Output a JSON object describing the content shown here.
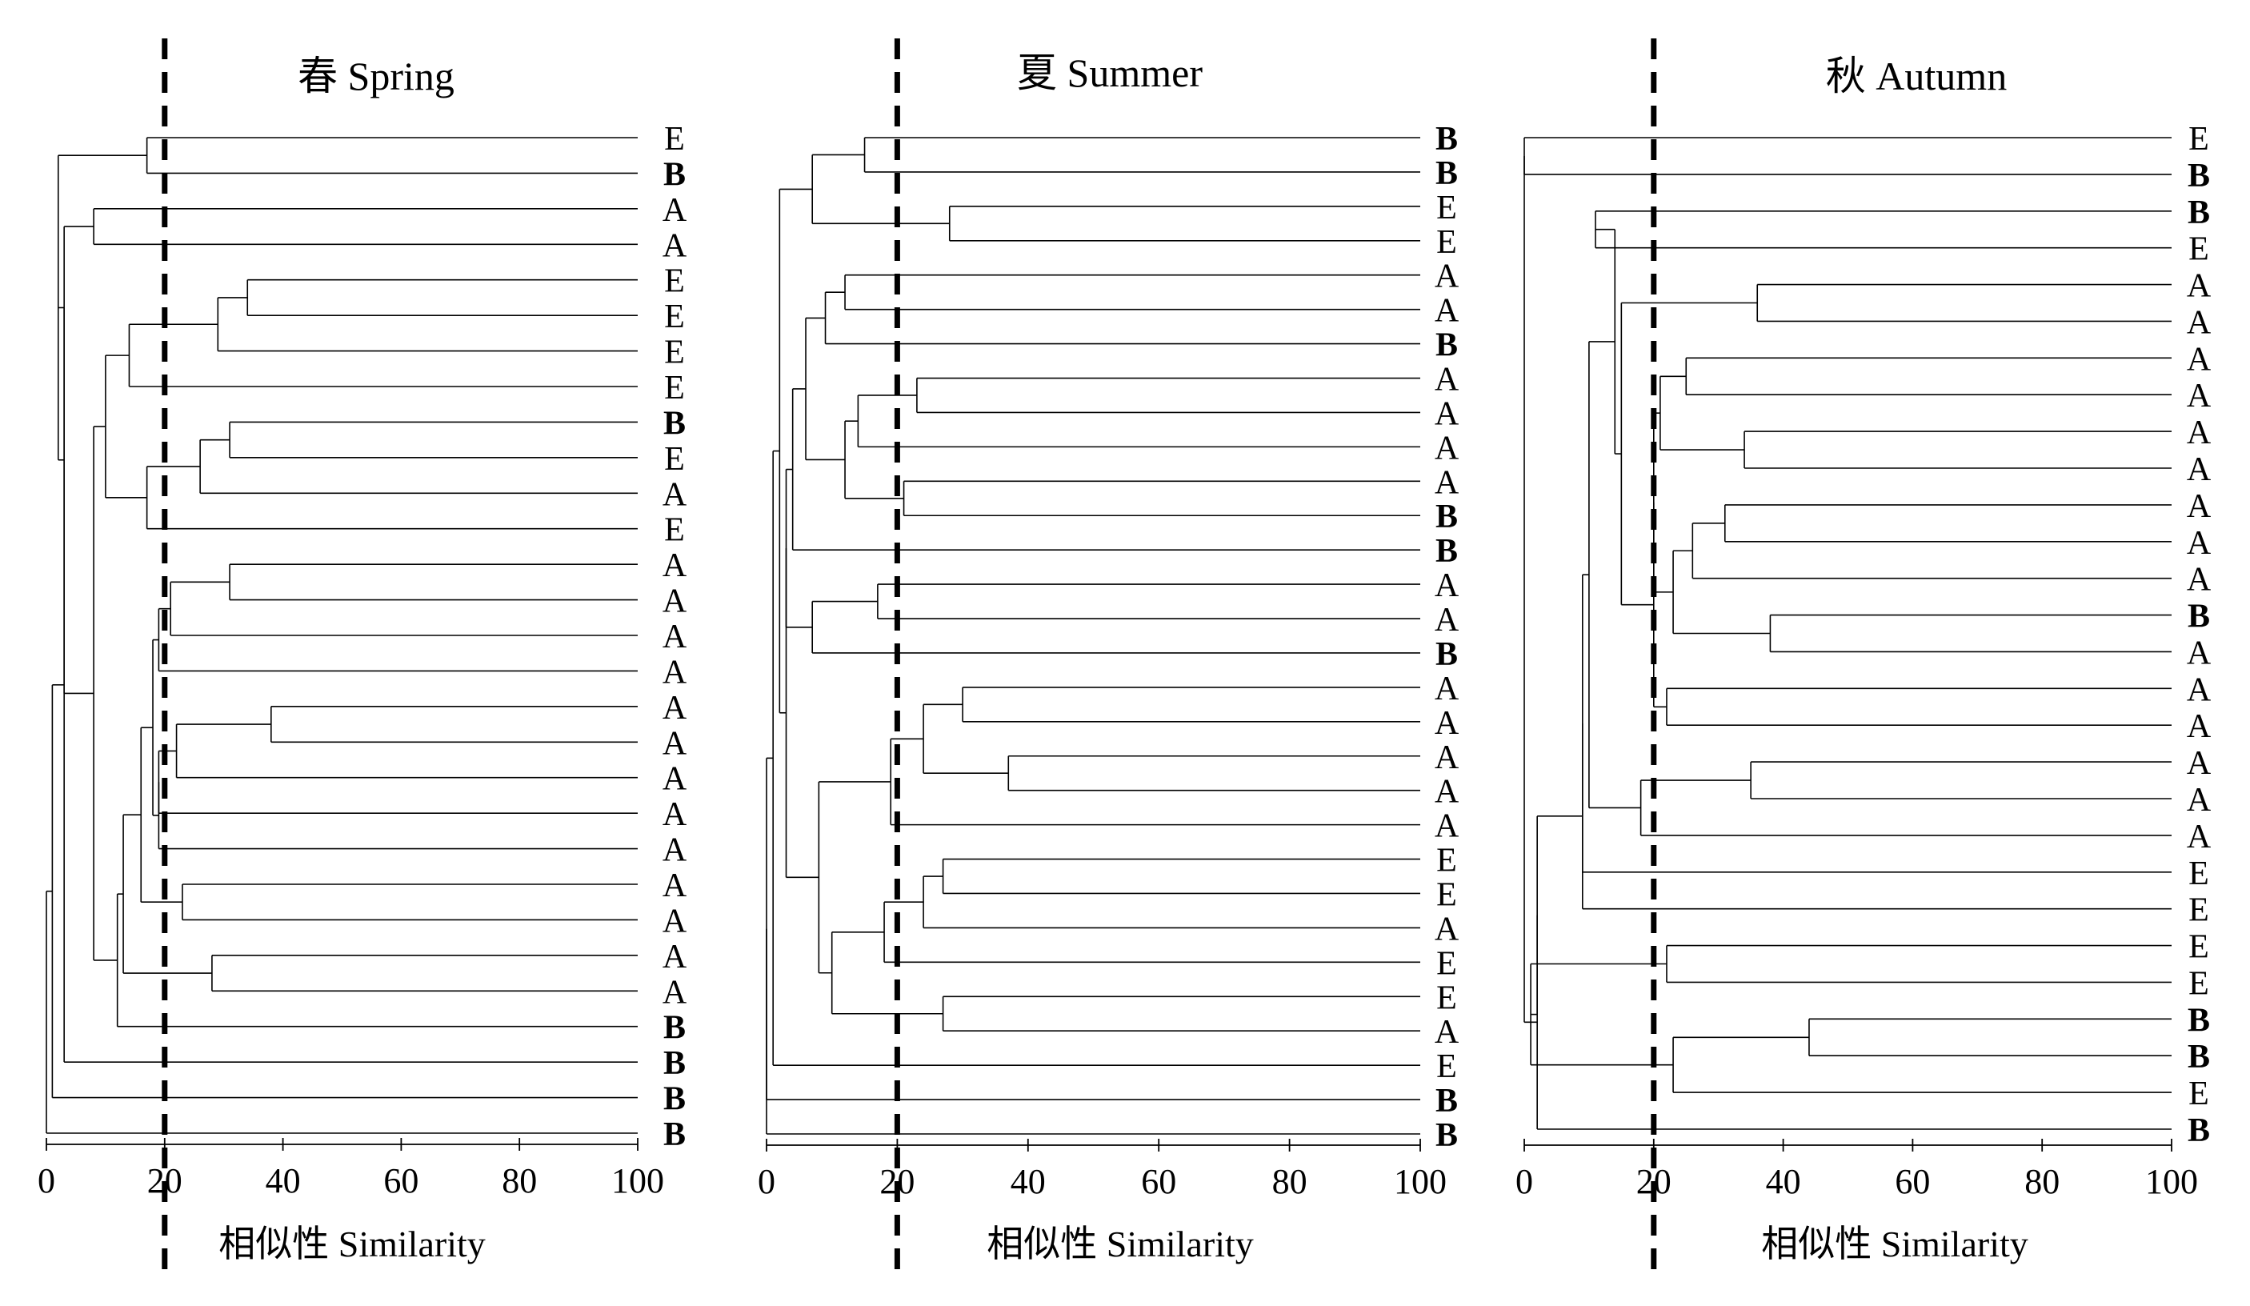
{
  "chart_data": [
    {
      "type": "dendrogram",
      "title": "春 Spring",
      "xlabel": "相似性 Similarity",
      "xlim": [
        0,
        100
      ],
      "xticks": [
        0,
        20,
        40,
        60,
        80,
        100
      ],
      "threshold": 20,
      "leaves": [
        {
          "label": "E",
          "bold": false
        },
        {
          "label": "B",
          "bold": true
        },
        {
          "label": "A",
          "bold": false
        },
        {
          "label": "A",
          "bold": false
        },
        {
          "label": "E",
          "bold": false
        },
        {
          "label": "E",
          "bold": false
        },
        {
          "label": "E",
          "bold": false
        },
        {
          "label": "E",
          "bold": false
        },
        {
          "label": "B",
          "bold": true
        },
        {
          "label": "E",
          "bold": false
        },
        {
          "label": "A",
          "bold": false
        },
        {
          "label": "E",
          "bold": false
        },
        {
          "label": "A",
          "bold": false
        },
        {
          "label": "A",
          "bold": false
        },
        {
          "label": "A",
          "bold": false
        },
        {
          "label": "A",
          "bold": false
        },
        {
          "label": "A",
          "bold": false
        },
        {
          "label": "A",
          "bold": false
        },
        {
          "label": "A",
          "bold": false
        },
        {
          "label": "A",
          "bold": false
        },
        {
          "label": "A",
          "bold": false
        },
        {
          "label": "A",
          "bold": false
        },
        {
          "label": "A",
          "bold": false
        },
        {
          "label": "A",
          "bold": false
        },
        {
          "label": "A",
          "bold": false
        },
        {
          "label": "B",
          "bold": true
        },
        {
          "label": "B",
          "bold": true
        },
        {
          "label": "B",
          "bold": true
        },
        {
          "label": "B",
          "bold": true
        }
      ],
      "merges": [
        {
          "a": "L0",
          "b": "L1",
          "s": 17
        },
        {
          "a": "L2",
          "b": "L3",
          "s": 8
        },
        {
          "a": "L4",
          "b": "L5",
          "s": 34
        },
        {
          "a": "L8",
          "b": "L9",
          "s": 31
        },
        {
          "a": "L12",
          "b": "L13",
          "s": 31
        },
        {
          "a": "L16",
          "b": "L17",
          "s": 38
        },
        {
          "a": "L21",
          "b": "L22",
          "s": 23
        },
        {
          "a": "L23",
          "b": "L24",
          "s": 28
        },
        {
          "a": "M2",
          "b": "L6",
          "s": 29
        },
        {
          "a": "M8",
          "b": "L7",
          "s": 14
        },
        {
          "a": "M3",
          "b": "L10",
          "s": 26
        },
        {
          "a": "M10",
          "b": "L11",
          "s": 17
        },
        {
          "a": "M9",
          "b": "M11",
          "s": 10
        },
        {
          "a": "M4",
          "b": "L14",
          "s": 21
        },
        {
          "a": "M13",
          "b": "L15",
          "s": 19
        },
        {
          "a": "M5",
          "b": "L18",
          "s": 22
        },
        {
          "a": "M15",
          "b": "L19",
          "s": 19
        },
        {
          "a": "M16",
          "b": "L20",
          "s": 19
        },
        {
          "a": "M14",
          "b": "M17",
          "s": 18
        },
        {
          "a": "M18",
          "b": "M6",
          "s": 16
        },
        {
          "a": "M19",
          "b": "M7",
          "s": 13
        },
        {
          "a": "M20",
          "b": "L25",
          "s": 12
        },
        {
          "a": "M12",
          "b": "M21",
          "s": 8
        },
        {
          "a": "M1",
          "b": "M22",
          "s": 3
        },
        {
          "a": "M0",
          "b": "M23",
          "s": 2
        },
        {
          "a": "M24",
          "b": "L26",
          "s": 3
        },
        {
          "a": "M25",
          "b": "L27",
          "s": 1
        },
        {
          "a": "M26",
          "b": "L28",
          "s": 0
        }
      ]
    },
    {
      "type": "dendrogram",
      "title": "夏 Summer",
      "xlabel": "相似性 Similarity",
      "xlim": [
        0,
        100
      ],
      "xticks": [
        0,
        20,
        40,
        60,
        80,
        100
      ],
      "threshold": 20,
      "leaves": [
        {
          "label": "B",
          "bold": true
        },
        {
          "label": "B",
          "bold": true
        },
        {
          "label": "E",
          "bold": false
        },
        {
          "label": "E",
          "bold": false
        },
        {
          "label": "A",
          "bold": false
        },
        {
          "label": "A",
          "bold": false
        },
        {
          "label": "B",
          "bold": true
        },
        {
          "label": "A",
          "bold": false
        },
        {
          "label": "A",
          "bold": false
        },
        {
          "label": "A",
          "bold": false
        },
        {
          "label": "A",
          "bold": false
        },
        {
          "label": "B",
          "bold": true
        },
        {
          "label": "B",
          "bold": true
        },
        {
          "label": "A",
          "bold": false
        },
        {
          "label": "A",
          "bold": false
        },
        {
          "label": "B",
          "bold": true
        },
        {
          "label": "A",
          "bold": false
        },
        {
          "label": "A",
          "bold": false
        },
        {
          "label": "A",
          "bold": false
        },
        {
          "label": "A",
          "bold": false
        },
        {
          "label": "A",
          "bold": false
        },
        {
          "label": "E",
          "bold": false
        },
        {
          "label": "E",
          "bold": false
        },
        {
          "label": "A",
          "bold": false
        },
        {
          "label": "E",
          "bold": false
        },
        {
          "label": "E",
          "bold": false
        },
        {
          "label": "A",
          "bold": false
        },
        {
          "label": "E",
          "bold": false
        },
        {
          "label": "B",
          "bold": true
        },
        {
          "label": "B",
          "bold": true
        }
      ],
      "merges": [
        {
          "a": "L0",
          "b": "L1",
          "s": 15
        },
        {
          "a": "L2",
          "b": "L3",
          "s": 28
        },
        {
          "a": "L4",
          "b": "L5",
          "s": 12
        },
        {
          "a": "L7",
          "b": "L8",
          "s": 23
        },
        {
          "a": "L10",
          "b": "L11",
          "s": 21
        },
        {
          "a": "L13",
          "b": "L14",
          "s": 17
        },
        {
          "a": "L16",
          "b": "L17",
          "s": 30
        },
        {
          "a": "L18",
          "b": "L19",
          "s": 37
        },
        {
          "a": "L21",
          "b": "L22",
          "s": 27
        },
        {
          "a": "L25",
          "b": "L26",
          "s": 27
        },
        {
          "a": "M0",
          "b": "M1",
          "s": 7
        },
        {
          "a": "M2",
          "b": "L6",
          "s": 9
        },
        {
          "a": "M3",
          "b": "L9",
          "s": 14
        },
        {
          "a": "M12",
          "b": "M4",
          "s": 12
        },
        {
          "a": "M11",
          "b": "M13",
          "s": 6
        },
        {
          "a": "M14",
          "b": "L12",
          "s": 4
        },
        {
          "a": "M5",
          "b": "L15",
          "s": 7
        },
        {
          "a": "M15",
          "b": "M16",
          "s": 3
        },
        {
          "a": "M6",
          "b": "M7",
          "s": 24
        },
        {
          "a": "M18",
          "b": "L20",
          "s": 19
        },
        {
          "a": "M8",
          "b": "L23",
          "s": 24
        },
        {
          "a": "M20",
          "b": "L24",
          "s": 18
        },
        {
          "a": "M21",
          "b": "M9",
          "s": 10
        },
        {
          "a": "M19",
          "b": "M22",
          "s": 8
        },
        {
          "a": "M17",
          "b": "M23",
          "s": 3
        },
        {
          "a": "M10",
          "b": "M24",
          "s": 2
        },
        {
          "a": "M25",
          "b": "L27",
          "s": 1
        },
        {
          "a": "M26",
          "b": "L28",
          "s": 0
        },
        {
          "a": "M27",
          "b": "L29",
          "s": 0
        }
      ]
    },
    {
      "type": "dendrogram",
      "title": "秋 Autumn",
      "xlabel": "相似性 Similarity",
      "xlim": [
        0,
        100
      ],
      "xticks": [
        0,
        20,
        40,
        60,
        80,
        100
      ],
      "threshold": 20,
      "leaves": [
        {
          "label": "E",
          "bold": false
        },
        {
          "label": "B",
          "bold": true
        },
        {
          "label": "B",
          "bold": true
        },
        {
          "label": "E",
          "bold": false
        },
        {
          "label": "A",
          "bold": false
        },
        {
          "label": "A",
          "bold": false
        },
        {
          "label": "A",
          "bold": false
        },
        {
          "label": "A",
          "bold": false
        },
        {
          "label": "A",
          "bold": false
        },
        {
          "label": "A",
          "bold": false
        },
        {
          "label": "A",
          "bold": false
        },
        {
          "label": "A",
          "bold": false
        },
        {
          "label": "A",
          "bold": false
        },
        {
          "label": "B",
          "bold": true
        },
        {
          "label": "A",
          "bold": false
        },
        {
          "label": "A",
          "bold": false
        },
        {
          "label": "A",
          "bold": false
        },
        {
          "label": "A",
          "bold": false
        },
        {
          "label": "A",
          "bold": false
        },
        {
          "label": "A",
          "bold": false
        },
        {
          "label": "E",
          "bold": false
        },
        {
          "label": "E",
          "bold": false
        },
        {
          "label": "E",
          "bold": false
        },
        {
          "label": "E",
          "bold": false
        },
        {
          "label": "B",
          "bold": true
        },
        {
          "label": "B",
          "bold": true
        },
        {
          "label": "E",
          "bold": false
        },
        {
          "label": "B",
          "bold": true
        }
      ],
      "merges": [
        {
          "a": "L0",
          "b": "L1",
          "s": 0
        },
        {
          "a": "L2",
          "b": "L3",
          "s": 11
        },
        {
          "a": "L4",
          "b": "L5",
          "s": 36
        },
        {
          "a": "L6",
          "b": "L7",
          "s": 25
        },
        {
          "a": "L8",
          "b": "L9",
          "s": 34
        },
        {
          "a": "L10",
          "b": "L11",
          "s": 31
        },
        {
          "a": "L13",
          "b": "L14",
          "s": 38
        },
        {
          "a": "L15",
          "b": "L16",
          "s": 22
        },
        {
          "a": "L17",
          "b": "L18",
          "s": 35
        },
        {
          "a": "L22",
          "b": "L23",
          "s": 22
        },
        {
          "a": "L24",
          "b": "L25",
          "s": 44
        },
        {
          "a": "M3",
          "b": "M4",
          "s": 21
        },
        {
          "a": "M5",
          "b": "L12",
          "s": 26
        },
        {
          "a": "M12",
          "b": "M6",
          "s": 23
        },
        {
          "a": "M11",
          "b": "M13",
          "s": 20
        },
        {
          "a": "M14",
          "b": "M7",
          "s": 20
        },
        {
          "a": "M2",
          "b": "M15",
          "s": 15
        },
        {
          "a": "M8",
          "b": "L19",
          "s": 18
        },
        {
          "a": "M16",
          "b": "M1",
          "s": 14
        },
        {
          "a": "M18",
          "b": "M17",
          "s": 10
        },
        {
          "a": "M19",
          "b": "L20",
          "s": 9
        },
        {
          "a": "M20",
          "b": "L21",
          "s": 9
        },
        {
          "a": "M10",
          "b": "L26",
          "s": 23
        },
        {
          "a": "M9",
          "b": "M22",
          "s": 1
        },
        {
          "a": "M21",
          "b": "M23",
          "s": 2
        },
        {
          "a": "M24",
          "b": "L27",
          "s": 2
        },
        {
          "a": "M0",
          "b": "M25",
          "s": 0
        }
      ]
    }
  ]
}
